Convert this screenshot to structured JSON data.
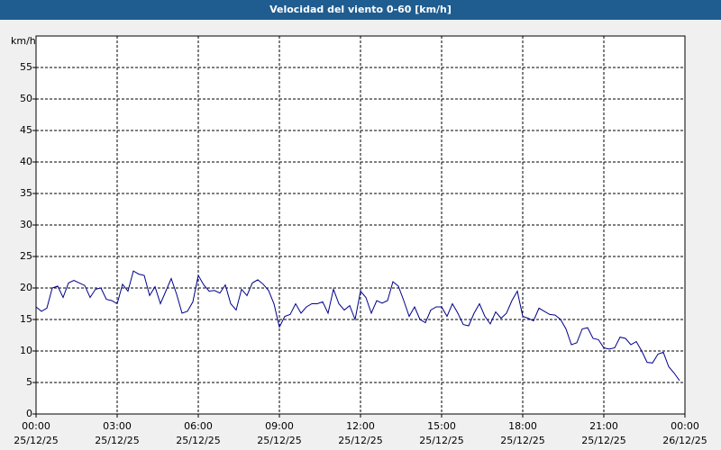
{
  "chart_data": {
    "type": "line",
    "title": "Velocidad del viento 0-60 [km/h]",
    "y_label": "km/h",
    "x": [
      0,
      0.2,
      0.4,
      0.6,
      0.8,
      1,
      1.2,
      1.4,
      1.6,
      1.8,
      2,
      2.2,
      2.4,
      2.6,
      2.8,
      3,
      3.2,
      3.4,
      3.6,
      3.8,
      4,
      4.2,
      4.4,
      4.6,
      4.8,
      5,
      5.2,
      5.4,
      5.6,
      5.8,
      6,
      6.2,
      6.4,
      6.6,
      6.8,
      7,
      7.2,
      7.4,
      7.6,
      7.8,
      8,
      8.2,
      8.4,
      8.6,
      8.8,
      9,
      9.2,
      9.4,
      9.6,
      9.8,
      10,
      10.2,
      10.4,
      10.6,
      10.8,
      11,
      11.2,
      11.4,
      11.6,
      11.8,
      12,
      12.2,
      12.4,
      12.6,
      12.8,
      13,
      13.2,
      13.4,
      13.6,
      13.8,
      14,
      14.2,
      14.4,
      14.6,
      14.8,
      15,
      15.2,
      15.4,
      15.6,
      15.8,
      16,
      16.2,
      16.4,
      16.6,
      16.8,
      17,
      17.2,
      17.4,
      17.6,
      17.8,
      18,
      18.2,
      18.4,
      18.6,
      18.8,
      19,
      19.2,
      19.4,
      19.6,
      19.8,
      20,
      20.2,
      20.4,
      20.6,
      20.8,
      21,
      21.2,
      21.4,
      21.6,
      21.8,
      22,
      22.2,
      22.4,
      22.6,
      22.8,
      23,
      23.2,
      23.4,
      23.6,
      23.8
    ],
    "series": [
      {
        "name": "Velocidad del viento",
        "color": "#00008b",
        "values": [
          17,
          16.3,
          16.8,
          20,
          20.3,
          18.5,
          20.8,
          21.2,
          20.8,
          20.4,
          18.5,
          19.8,
          20,
          18.2,
          18,
          17.5,
          20.6,
          19.5,
          22.7,
          22.2,
          22,
          18.8,
          20.2,
          17.5,
          19.5,
          21.5,
          19,
          16,
          16.3,
          17.8,
          22,
          20.5,
          19.5,
          19.6,
          19.2,
          20.5,
          17.5,
          16.5,
          19.8,
          18.8,
          20.8,
          21.3,
          20.6,
          19.6,
          17.5,
          13.8,
          15.5,
          15.8,
          17.5,
          16,
          17,
          17.5,
          17.5,
          17.8,
          16,
          19.8,
          17.5,
          16.5,
          17.2,
          15,
          19.5,
          18.5,
          16,
          18,
          17.6,
          18,
          21,
          20.3,
          18,
          15.5,
          17,
          15,
          14.5,
          16.5,
          17,
          17,
          15.5,
          17.5,
          16,
          14.2,
          14,
          16,
          17.5,
          15.5,
          14.3,
          16.2,
          15.2,
          16,
          18,
          19.5,
          15.5,
          15.2,
          14.8,
          16.8,
          16.3,
          15.8,
          15.7,
          15,
          13.5,
          11,
          11.3,
          13.5,
          13.7,
          12,
          11.8,
          10.5,
          10.3,
          10.5,
          12.2,
          12,
          11,
          11.5,
          10,
          8.2,
          8.1,
          9.5,
          9.8,
          7.5,
          6.5,
          5.3
        ]
      }
    ],
    "xlim": [
      0,
      24
    ],
    "xticks": [
      {
        "value": 0,
        "label": "00:00",
        "date": "25/12/25"
      },
      {
        "value": 3,
        "label": "03:00",
        "date": "25/12/25"
      },
      {
        "value": 6,
        "label": "06:00",
        "date": "25/12/25"
      },
      {
        "value": 9,
        "label": "09:00",
        "date": "25/12/25"
      },
      {
        "value": 12,
        "label": "12:00",
        "date": "25/12/25"
      },
      {
        "value": 15,
        "label": "15:00",
        "date": "25/12/25"
      },
      {
        "value": 18,
        "label": "18:00",
        "date": "25/12/25"
      },
      {
        "value": 21,
        "label": "21:00",
        "date": "25/12/25"
      },
      {
        "value": 24,
        "label": "00:00",
        "date": "26/12/25"
      }
    ],
    "ylim": [
      0,
      60
    ],
    "yticks": [
      0,
      5,
      10,
      15,
      20,
      25,
      30,
      35,
      40,
      45,
      50,
      55
    ],
    "grid": true
  }
}
